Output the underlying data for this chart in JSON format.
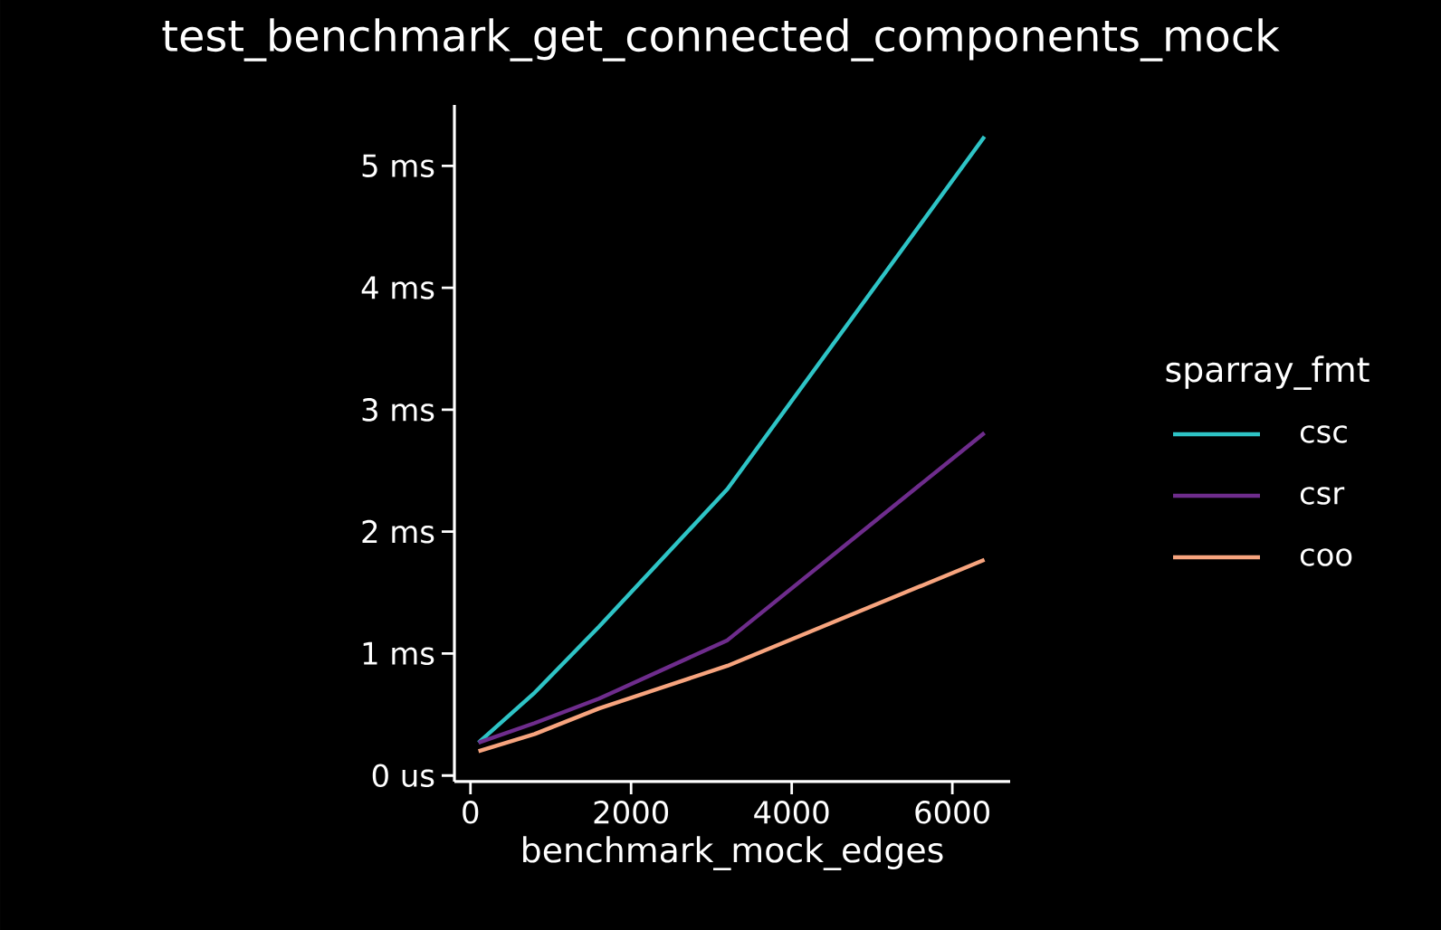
{
  "chart_data": {
    "type": "line",
    "title": "test_benchmark_get_connected_components_mock",
    "xlabel": "benchmark_mock_edges",
    "legend_title": "sparray_fmt",
    "legend": "right",
    "grid": false,
    "marker": "none",
    "line_style": "solid",
    "x": [
      100,
      800,
      1600,
      3200,
      6400
    ],
    "xlim": [
      -200,
      6720
    ],
    "xticks": [
      0,
      2000,
      4000,
      6000
    ],
    "ylim": [
      -0.05,
      5.5
    ],
    "yticks": [
      {
        "value": 0,
        "label": "0 us"
      },
      {
        "value": 1,
        "label": "1 ms"
      },
      {
        "value": 2,
        "label": "2 ms"
      },
      {
        "value": 3,
        "label": "3 ms"
      },
      {
        "value": 4,
        "label": "4 ms"
      },
      {
        "value": 5,
        "label": "5 ms"
      }
    ],
    "series": [
      {
        "name": "csc",
        "color": "#2ec4c6",
        "values": [
          0.27,
          0.68,
          1.22,
          2.35,
          5.24
        ]
      },
      {
        "name": "csr",
        "color": "#6e2c8c",
        "values": [
          0.27,
          0.43,
          0.63,
          1.11,
          2.81
        ]
      },
      {
        "name": "coo",
        "color": "#f7a47e",
        "values": [
          0.2,
          0.34,
          0.55,
          0.9,
          1.77
        ]
      }
    ]
  }
}
